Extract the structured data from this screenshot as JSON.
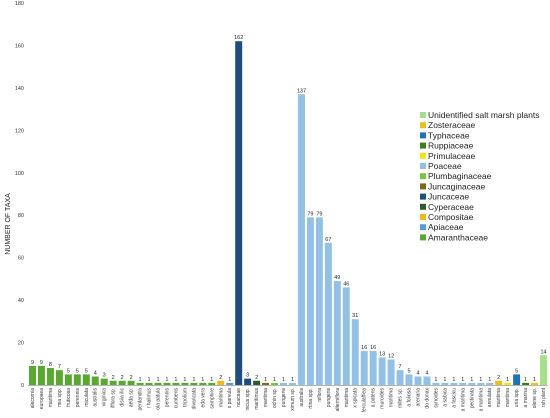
{
  "chart_data": {
    "type": "bar",
    "ylabel": "NUMBER OF TAXA",
    "ylim": [
      0,
      180
    ],
    "yticks": [
      0,
      20,
      40,
      60,
      80,
      100,
      120,
      140,
      160,
      180
    ],
    "grid": false,
    "legend_position": "right",
    "legend": [
      {
        "name": "Unidentified salt marsh plants",
        "color": "#a6e08a"
      },
      {
        "name": "Zosteraceae",
        "color": "#e8c11e"
      },
      {
        "name": "Typhaceae",
        "color": "#1e73b8"
      },
      {
        "name": "Ruppiaceae",
        "color": "#3f7d1f"
      },
      {
        "name": "Primulaceae",
        "color": "#f7e21a"
      },
      {
        "name": "Poaceae",
        "color": "#93c1e6"
      },
      {
        "name": "Plumbaginaceae",
        "color": "#7cc242"
      },
      {
        "name": "Juncaginaceae",
        "color": "#7d6a16"
      },
      {
        "name": "Juncaceae",
        "color": "#1f4e7a"
      },
      {
        "name": "Cyperaceae",
        "color": "#2d5b2a"
      },
      {
        "name": "Compositae",
        "color": "#f2b81b"
      },
      {
        "name": "Apiaceae",
        "color": "#5c9bd6"
      },
      {
        "name": "Amaranthaceae",
        "color": "#5aa832"
      }
    ],
    "categories": [
      "alecornia",
      "europaea",
      "maritima",
      "mia spp.",
      "fruticosa",
      "perennis",
      "miculata",
      "australis",
      "virginica",
      "ifflora sp.",
      "disiia ilic",
      "aeda sp.",
      "pentandra",
      "r halimus",
      "ola patula",
      "perennis",
      "cumbens",
      "tripolium",
      "divaricata",
      "eda vera",
      "samphire",
      "maritima",
      "s parvula",
      "ncaceae",
      "incus spp.",
      "maritimus",
      "maritima",
      "ochin sp.",
      "pungens",
      "ximum sp.",
      "australis",
      "rtina spp.",
      "niflora",
      "pungens",
      "alterniflora",
      "maritima",
      "x spicata",
      "ferculaffiea",
      "a patens",
      "rnuroides",
      "maritima",
      "mites sp.",
      "a foliosa",
      "arenaria",
      "do donax",
      "synoides",
      "a sabica",
      "a fascicu",
      "a maritima",
      "pectinata",
      "a maritima",
      "annulata",
      "maritima",
      "maritima",
      "uria spp.",
      "a marina",
      "olene sp.",
      "rsh plant"
    ],
    "values": [
      9,
      9,
      8,
      7,
      5,
      5,
      5,
      4,
      3,
      2,
      2,
      2,
      1,
      1,
      1,
      1,
      1,
      1,
      1,
      1,
      1,
      2,
      1,
      162,
      3,
      2,
      1,
      1,
      1,
      1,
      137,
      79,
      79,
      67,
      49,
      46,
      31,
      16,
      16,
      13,
      12,
      7,
      5,
      4,
      4,
      1,
      1,
      1,
      1,
      1,
      1,
      1,
      2,
      1,
      5,
      1,
      1,
      14
    ],
    "value_labels": [
      "9",
      "9",
      "8",
      "7",
      "5",
      "5",
      "5",
      "4",
      "3",
      "2",
      "2",
      "2",
      "1",
      "1",
      "1",
      "1",
      "1",
      "1",
      "1",
      "1",
      "1",
      "2",
      "1",
      "162",
      "3",
      "2",
      "1",
      "1",
      "1",
      "1",
      "137",
      "79",
      "79",
      "67",
      "49",
      "46",
      "31",
      "16",
      "16",
      "13",
      "12",
      "7",
      "5",
      "4",
      "4",
      "1",
      "1",
      "1",
      "1",
      "1",
      "1",
      "1",
      "2",
      "1",
      "5",
      "1",
      "1",
      "14"
    ],
    "families": [
      "Amaranthaceae",
      "Amaranthaceae",
      "Amaranthaceae",
      "Amaranthaceae",
      "Amaranthaceae",
      "Amaranthaceae",
      "Amaranthaceae",
      "Amaranthaceae",
      "Amaranthaceae",
      "Amaranthaceae",
      "Amaranthaceae",
      "Amaranthaceae",
      "Amaranthaceae",
      "Amaranthaceae",
      "Amaranthaceae",
      "Amaranthaceae",
      "Amaranthaceae",
      "Amaranthaceae",
      "Amaranthaceae",
      "Amaranthaceae",
      "Amaranthaceae",
      "Compositae",
      "Apiaceae",
      "Juncaceae",
      "Juncaceae",
      "Cyperaceae",
      "Juncaginaceae",
      "Plumbaginaceae",
      "Poaceae",
      "Poaceae",
      "Poaceae",
      "Poaceae",
      "Poaceae",
      "Poaceae",
      "Poaceae",
      "Poaceae",
      "Poaceae",
      "Poaceae",
      "Poaceae",
      "Poaceae",
      "Poaceae",
      "Poaceae",
      "Poaceae",
      "Poaceae",
      "Poaceae",
      "Poaceae",
      "Poaceae",
      "Poaceae",
      "Poaceae",
      "Poaceae",
      "Poaceae",
      "Poaceae",
      "Zosteraceae",
      "Primulaceae",
      "Typhaceae",
      "Ruppiaceae",
      "Zosteraceae",
      "Unidentified salt marsh plants"
    ]
  }
}
